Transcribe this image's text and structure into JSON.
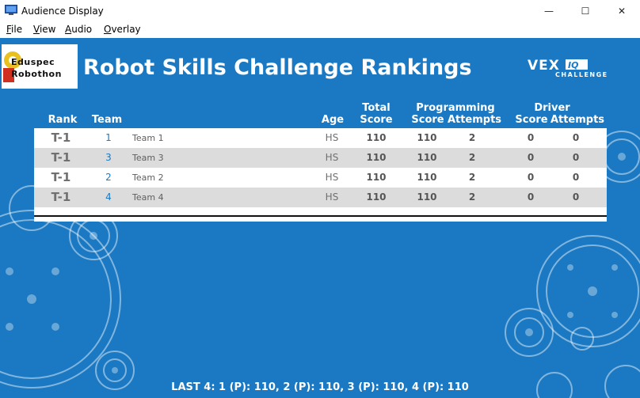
{
  "window": {
    "title": "Audience Display",
    "minimize": "—",
    "maximize": "☐",
    "close": "✕"
  },
  "menu": [
    {
      "label": "File",
      "u": "F",
      "rest": "ile"
    },
    {
      "label": "View",
      "u": "V",
      "rest": "iew"
    },
    {
      "label": "Audio",
      "u": "A",
      "rest": "udio"
    },
    {
      "label": "Overlay",
      "u": "O",
      "rest": "verlay"
    }
  ],
  "logo": {
    "line1": "Eduspec",
    "line2": "Robothon"
  },
  "title": "Robot Skills Challenge Rankings",
  "brand": {
    "name": "VEX IQ",
    "sub": "CHALLENGE"
  },
  "colors": {
    "background": "#1a79c2",
    "row_alt": "#dcdcdc",
    "team_link": "#1a79c2"
  },
  "headers": {
    "rank": "Rank",
    "team": "Team",
    "age": "Age",
    "total_1": "Total",
    "total_2": "Score",
    "programming": "Programming",
    "p_score": "Score",
    "p_attempts": "Attempts",
    "driver": "Driver",
    "d_score": "Score",
    "d_attempts": "Attempts"
  },
  "rows": [
    {
      "rank": "T-1",
      "team": "1",
      "name": "Team 1",
      "age": "HS",
      "total": "110",
      "p_score": "110",
      "p_attempts": "2",
      "d_score": "0",
      "d_attempts": "0"
    },
    {
      "rank": "T-1",
      "team": "3",
      "name": "Team 3",
      "age": "HS",
      "total": "110",
      "p_score": "110",
      "p_attempts": "2",
      "d_score": "0",
      "d_attempts": "0"
    },
    {
      "rank": "T-1",
      "team": "2",
      "name": "Team 2",
      "age": "HS",
      "total": "110",
      "p_score": "110",
      "p_attempts": "2",
      "d_score": "0",
      "d_attempts": "0"
    },
    {
      "rank": "T-1",
      "team": "4",
      "name": "Team 4",
      "age": "HS",
      "total": "110",
      "p_score": "110",
      "p_attempts": "2",
      "d_score": "0",
      "d_attempts": "0"
    }
  ],
  "ticker": "LAST 4: 1 (P): 110, 2 (P): 110, 3 (P): 110, 4 (P): 110"
}
